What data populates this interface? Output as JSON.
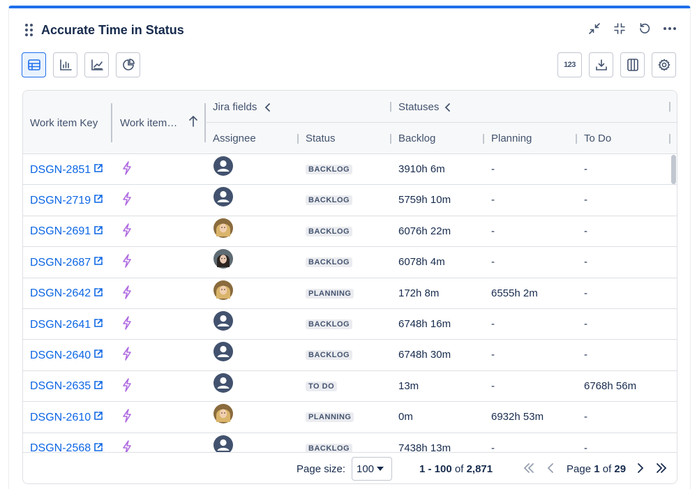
{
  "widget": {
    "title": "Accurate Time in Status"
  },
  "header_actions": [
    {
      "name": "collapse-arrows-icon"
    },
    {
      "name": "shrink-icon"
    },
    {
      "name": "refresh-icon"
    },
    {
      "name": "more-icon"
    }
  ],
  "toolbar": {
    "views": [
      "table-view-icon",
      "bar-chart-icon",
      "area-chart-icon",
      "pie-chart-icon"
    ],
    "number_format": "123",
    "right_icons": [
      "download-icon",
      "columns-icon",
      "settings-icon"
    ]
  },
  "columns": {
    "work_item_key": "Work item Key",
    "work_item_type": "Work item…",
    "group_jira": "Jira fields",
    "group_statuses": "Statuses",
    "assignee": "Assignee",
    "status": "Status",
    "backlog": "Backlog",
    "planning": "Planning",
    "todo": "To Do"
  },
  "rows": [
    {
      "key": "DSGN-2851",
      "status": "BACKLOG",
      "backlog": "3910h 6m",
      "planning": "-",
      "todo": "-",
      "avatar": "default"
    },
    {
      "key": "DSGN-2719",
      "status": "BACKLOG",
      "backlog": "5759h 10m",
      "planning": "-",
      "todo": "-",
      "avatar": "default"
    },
    {
      "key": "DSGN-2691",
      "status": "BACKLOG",
      "backlog": "6076h 22m",
      "planning": "-",
      "todo": "-",
      "avatar": "blonde"
    },
    {
      "key": "DSGN-2687",
      "status": "BACKLOG",
      "backlog": "6078h 4m",
      "planning": "-",
      "todo": "-",
      "avatar": "dark"
    },
    {
      "key": "DSGN-2642",
      "status": "PLANNING",
      "backlog": "172h 8m",
      "planning": "6555h 2m",
      "todo": "-",
      "avatar": "blonde"
    },
    {
      "key": "DSGN-2641",
      "status": "BACKLOG",
      "backlog": "6748h 16m",
      "planning": "-",
      "todo": "-",
      "avatar": "default"
    },
    {
      "key": "DSGN-2640",
      "status": "BACKLOG",
      "backlog": "6748h 30m",
      "planning": "-",
      "todo": "-",
      "avatar": "default"
    },
    {
      "key": "DSGN-2635",
      "status": "TO DO",
      "backlog": "13m",
      "planning": "-",
      "todo": "6768h 56m",
      "avatar": "default"
    },
    {
      "key": "DSGN-2610",
      "status": "PLANNING",
      "backlog": "0m",
      "planning": "6932h 53m",
      "todo": "-",
      "avatar": "blonde"
    },
    {
      "key": "DSGN-2568",
      "status": "BACKLOG",
      "backlog": "7438h 13m",
      "planning": "-",
      "todo": "-",
      "avatar": "default"
    }
  ],
  "pagination": {
    "page_size_label": "Page size:",
    "page_size": "100",
    "range": "1 - 100",
    "of_word": "of",
    "total": "2,871",
    "page_word": "Page",
    "current_page": "1",
    "total_pages": "29"
  },
  "colors": {
    "accent": "#1f6feb",
    "link": "#0c66e4",
    "bolt": "#b06ce0"
  }
}
